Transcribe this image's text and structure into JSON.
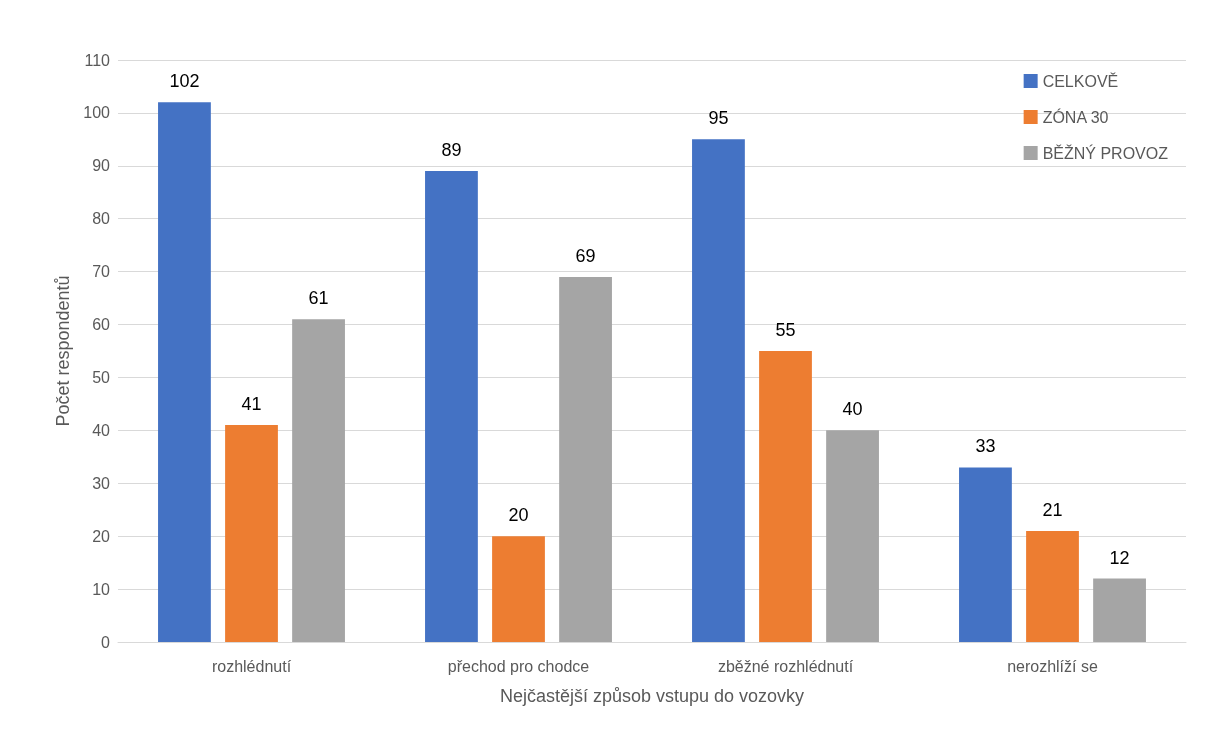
{
  "chart_data": {
    "type": "bar",
    "xlabel": "Nejčastější způsob vstupu do vozovky",
    "ylabel": "Počet respondentů",
    "categories": [
      "rozhlédnutí",
      "přechod pro chodce",
      "zběžné rozhlédnutí",
      "nerozhlíží se"
    ],
    "series": [
      {
        "name": "CELKOVĚ",
        "color": "#4472c4",
        "values": [
          102,
          89,
          95,
          33
        ]
      },
      {
        "name": "ZÓNA 30",
        "color": "#ed7d31",
        "values": [
          41,
          20,
          55,
          21
        ]
      },
      {
        "name": "BĚŽNÝ PROVOZ",
        "color": "#a5a5a5",
        "values": [
          61,
          69,
          40,
          12
        ]
      }
    ],
    "ylim": [
      0,
      110
    ],
    "yticks": [
      0,
      10,
      20,
      30,
      40,
      50,
      60,
      70,
      80,
      90,
      100,
      110
    ],
    "grid": "y",
    "legend": "top right",
    "data_labels": true
  }
}
